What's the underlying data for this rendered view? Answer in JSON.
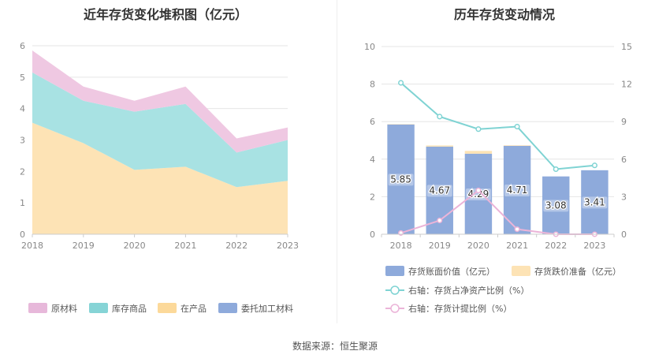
{
  "left_title": "近年存货变化堆积图（亿元）",
  "right_title": "历年存货变动情况",
  "source": "数据来源：恒生聚源",
  "chart_data": [
    {
      "type": "area",
      "title": "近年存货变化堆积图（亿元）",
      "x": [
        "2018",
        "2019",
        "2020",
        "2021",
        "2022",
        "2023"
      ],
      "ylim": [
        0,
        6
      ],
      "yticks": [
        "0",
        "1",
        "2",
        "3",
        "4",
        "5",
        "6"
      ],
      "stacked": true,
      "series": [
        {
          "name": "委托加工材料",
          "color": "#8eaadb",
          "values": [
            0,
            0,
            0,
            0,
            0,
            0
          ]
        },
        {
          "name": "在产品",
          "color": "#fde3b5",
          "values": [
            3.55,
            2.9,
            2.05,
            2.15,
            1.5,
            1.7
          ]
        },
        {
          "name": "库存商品",
          "color": "#a8e2e3",
          "values": [
            1.6,
            1.35,
            1.85,
            2.0,
            1.1,
            1.3
          ]
        },
        {
          "name": "原材料",
          "color": "#efc8e2",
          "values": [
            0.7,
            0.45,
            0.35,
            0.55,
            0.45,
            0.4
          ]
        }
      ],
      "legend": [
        "原材料",
        "库存商品",
        "在产品",
        "委托加工材料"
      ],
      "legend_colors": [
        "#e7b8da",
        "#86d4d6",
        "#fcd99a",
        "#8eaadb"
      ],
      "legend_position": "bottom"
    },
    {
      "type": "bar",
      "title": "历年存货变动情况",
      "categories": [
        "2018",
        "2019",
        "2020",
        "2021",
        "2022",
        "2023"
      ],
      "ylim": [
        0,
        10
      ],
      "yticks": [
        "0",
        "2",
        "4",
        "6",
        "8",
        "10"
      ],
      "y2lim": [
        0,
        15
      ],
      "y2ticks": [
        "0",
        "3",
        "6",
        "9",
        "12",
        "15"
      ],
      "bars": [
        {
          "name": "存货账面价值（亿元）",
          "color": "#8eaadb",
          "values": [
            5.85,
            4.67,
            4.29,
            4.71,
            3.08,
            3.41
          ],
          "labels": [
            "5.85",
            "4.67",
            "4.29",
            "4.71",
            "3.08",
            "3.41"
          ]
        },
        {
          "name": "存货跌价准备（亿元）",
          "color": "#fde3b5",
          "values": [
            0.02,
            0.06,
            0.15,
            0.03,
            0.0,
            0.0
          ]
        }
      ],
      "lines": [
        {
          "name": "右轴：存货占净资产比例（%）",
          "color": "#7fd3d3",
          "axis": "right",
          "values": [
            12.1,
            9.4,
            8.4,
            8.6,
            5.2,
            5.5
          ]
        },
        {
          "name": "右轴：存货计提比例（%）",
          "color": "#ebb4d8",
          "axis": "right",
          "values": [
            0.1,
            1.1,
            3.5,
            0.4,
            0.0,
            0.0
          ]
        }
      ],
      "legend_position": "bottom"
    }
  ]
}
